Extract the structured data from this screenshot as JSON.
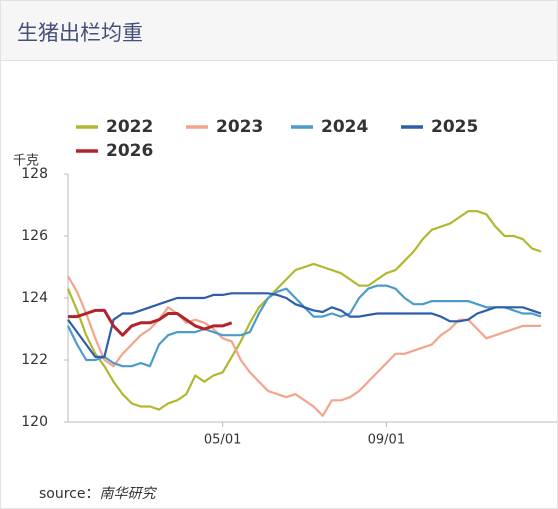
{
  "header": {
    "title": "生猪出栏均重"
  },
  "chart_data": {
    "type": "line",
    "y_label": "千克",
    "categories": [
      null,
      null,
      null,
      null,
      null,
      null,
      null,
      null,
      null,
      null,
      null,
      null,
      null,
      null,
      null,
      null,
      null,
      "05/01",
      null,
      null,
      null,
      null,
      null,
      null,
      null,
      null,
      null,
      null,
      null,
      null,
      null,
      null,
      null,
      null,
      null,
      "09/01",
      null,
      null,
      null,
      null,
      null,
      null,
      null,
      null,
      null,
      null,
      null,
      null,
      null,
      null,
      null,
      null,
      null
    ],
    "ylim": [
      120,
      128
    ],
    "yticks": [
      120,
      122,
      124,
      126,
      128
    ],
    "series": [
      {
        "name": "2022",
        "color": "#b3b730",
        "values": [
          124.3,
          123.6,
          122.8,
          122.2,
          121.8,
          121.3,
          120.9,
          120.6,
          120.5,
          120.5,
          120.4,
          120.6,
          120.7,
          120.9,
          121.5,
          121.3,
          121.5,
          121.6,
          122.1,
          122.6,
          123.2,
          123.7,
          124.0,
          124.3,
          124.6,
          124.9,
          125.0,
          125.1,
          125.0,
          124.9,
          124.8,
          124.6,
          124.4,
          124.4,
          124.6,
          124.8,
          124.9,
          125.2,
          125.5,
          125.9,
          126.2,
          126.3,
          126.4,
          126.6,
          126.8,
          126.8,
          126.7,
          126.3,
          126.0,
          126.0,
          125.9,
          125.6,
          125.5
        ]
      },
      {
        "name": "2023",
        "color": "#f2a58c",
        "values": [
          124.7,
          124.2,
          123.5,
          122.7,
          122.0,
          121.8,
          122.2,
          122.5,
          122.8,
          123.0,
          123.3,
          123.7,
          123.5,
          123.2,
          123.3,
          123.2,
          123.0,
          122.7,
          122.6,
          122.0,
          121.6,
          121.3,
          121.0,
          120.9,
          120.8,
          120.9,
          120.7,
          120.5,
          120.2,
          120.7,
          120.7,
          120.8,
          121.0,
          121.3,
          121.6,
          121.9,
          122.2,
          122.2,
          122.3,
          122.4,
          122.5,
          122.8,
          123.0,
          123.3,
          123.3,
          123.0,
          122.7,
          122.8,
          122.9,
          123.0,
          123.1,
          123.1,
          123.1
        ]
      },
      {
        "name": "2024",
        "color": "#4b9cc9",
        "values": [
          123.1,
          122.5,
          122.0,
          122.0,
          122.1,
          121.9,
          121.8,
          121.8,
          121.9,
          121.8,
          122.5,
          122.8,
          122.9,
          122.9,
          122.9,
          123.0,
          122.9,
          122.8,
          122.8,
          122.8,
          122.9,
          123.5,
          124.0,
          124.2,
          124.3,
          124.0,
          123.7,
          123.4,
          123.4,
          123.5,
          123.4,
          123.5,
          124.0,
          124.3,
          124.4,
          124.4,
          124.3,
          124.0,
          123.8,
          123.8,
          123.9,
          123.9,
          123.9,
          123.9,
          123.9,
          123.8,
          123.7,
          123.7,
          123.7,
          123.6,
          123.5,
          123.5,
          123.4
        ]
      },
      {
        "name": "2025",
        "color": "#2d5ea8",
        "values": [
          123.3,
          122.9,
          122.5,
          122.1,
          122.1,
          123.3,
          123.5,
          123.5,
          123.6,
          123.7,
          123.8,
          123.9,
          124.0,
          124.0,
          124.0,
          124.0,
          124.1,
          124.1,
          124.15,
          124.15,
          124.15,
          124.15,
          124.15,
          124.1,
          124.0,
          123.8,
          123.7,
          123.6,
          123.55,
          123.7,
          123.6,
          123.4,
          123.4,
          123.45,
          123.5,
          123.5,
          123.5,
          123.5,
          123.5,
          123.5,
          123.5,
          123.4,
          123.25,
          123.25,
          123.3,
          123.5,
          123.6,
          123.7,
          123.7,
          123.7,
          123.7,
          123.6,
          123.5
        ]
      },
      {
        "name": "2026",
        "color": "#b0252b",
        "values": [
          123.4,
          123.4,
          123.5,
          123.6,
          123.6,
          123.1,
          122.8,
          123.1,
          123.2,
          123.2,
          123.3,
          123.5,
          123.5,
          123.3,
          123.1,
          123.0,
          123.1,
          123.1,
          123.2,
          null,
          null,
          null,
          null,
          null,
          null,
          null,
          null,
          null,
          null,
          null,
          null,
          null,
          null,
          null,
          null,
          null,
          null,
          null,
          null,
          null,
          null,
          null,
          null,
          null,
          null,
          null,
          null,
          null,
          null,
          null,
          null,
          null,
          null
        ]
      }
    ]
  },
  "footer": {
    "label": "source：",
    "text": "南华研究"
  }
}
